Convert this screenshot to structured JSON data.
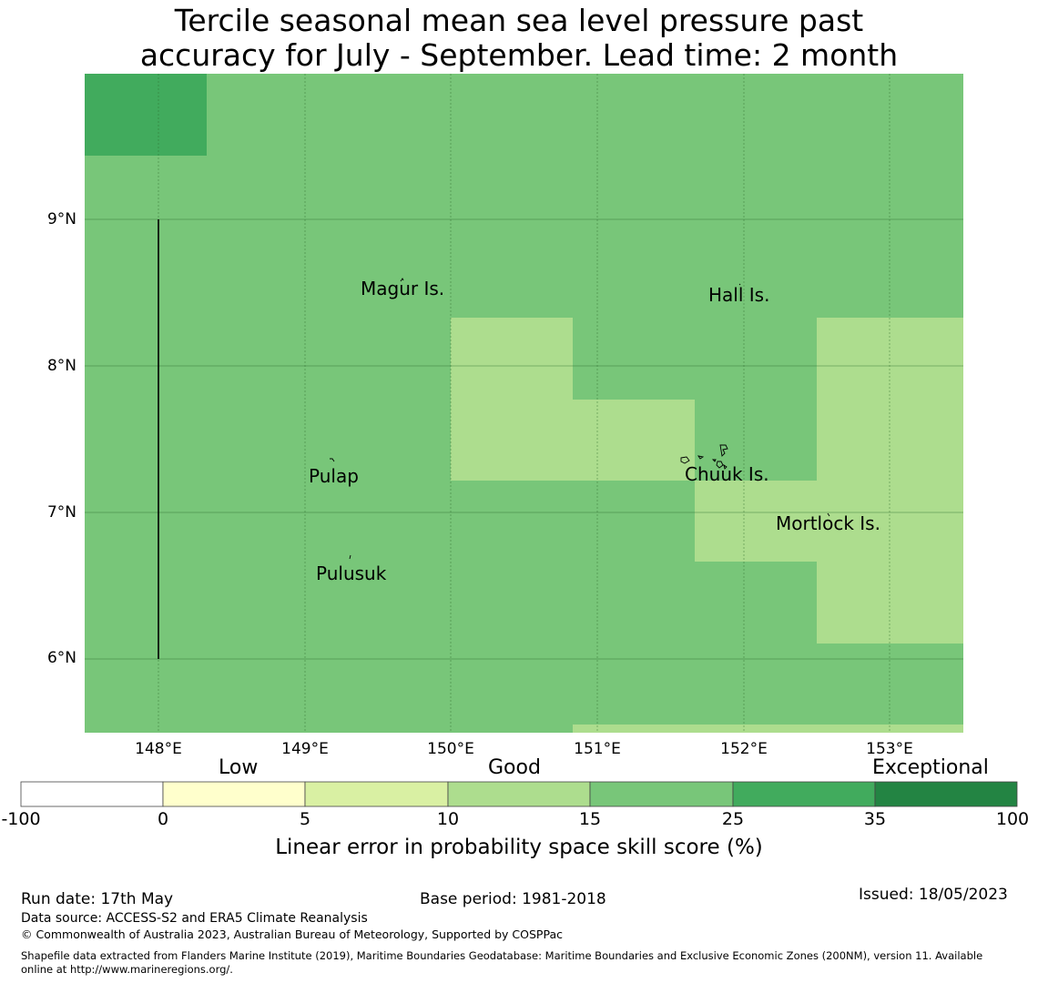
{
  "title": {
    "line1": "Tercile seasonal mean sea level pressure past",
    "line2": "accuracy for July - September. Lead time: 2 month"
  },
  "map": {
    "lat_labels": [
      "9°N",
      "8°N",
      "7°N",
      "6°N"
    ],
    "lon_labels": [
      "148°E",
      "149°E",
      "150°E",
      "151°E",
      "152°E",
      "153°E"
    ],
    "places": [
      "Magur Is.",
      "Hall Is.",
      "Pulap",
      "Chuuk Is.",
      "Mortlock Is.",
      "Pulusuk"
    ],
    "colors": {
      "band_15_25": "#78c679",
      "band_10_15": "#addd8e",
      "band_25_35": "#41ab5d"
    }
  },
  "colorbar": {
    "categories": [
      "Low",
      "Good",
      "Exceptional"
    ],
    "ticks": [
      "-100",
      "0",
      "5",
      "10",
      "15",
      "25",
      "35",
      "100"
    ],
    "colors": [
      "#ffffff",
      "#ffffcc",
      "#d9f0a3",
      "#addd8e",
      "#78c679",
      "#41ab5d",
      "#238443"
    ],
    "label": "Linear error in probability space skill score (%)"
  },
  "footer": {
    "run_date": "Run date: 17th May",
    "base_period": "Base period: 1981-2018",
    "issued": "Issued: 18/05/2023",
    "data_source": "Data source: ACCESS-S2 and ERA5 Climate Reanalysis",
    "copyright": "© Commonwealth of Australia 2023, Australian Bureau of Meteorology, Supported by COSPPac",
    "shapefile_line1": "Shapefile data extracted from Flanders Marine Institute (2019), Maritime Boundaries Geodatabase: Maritime Boundaries and Exclusive Economic Zones (200NM), version 11. Available",
    "shapefile_line2": "online at http://www.marineregions.org/."
  }
}
